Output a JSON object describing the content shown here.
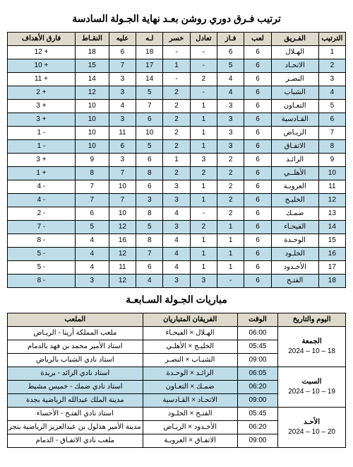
{
  "standings": {
    "title": "ترتيب فـرق دوري روشن بعـد نهاية الجـولة السادسة",
    "headers": [
      "الترتيب",
      "الفـريق",
      "لعب",
      "فـاز",
      "تعادل",
      "خسر",
      "لـه",
      "عليه",
      "النقـاط",
      "فارق الأهداف"
    ],
    "rows": [
      {
        "rank": "1",
        "team": "الهـلال",
        "played": "6",
        "won": "6",
        "drawn": "-",
        "lost": "-",
        "for": "18",
        "against": "6",
        "points": "18",
        "gd": "12 +"
      },
      {
        "rank": "2",
        "team": "الاتحـاد",
        "played": "6",
        "won": "5",
        "drawn": "-",
        "lost": "1",
        "for": "17",
        "against": "7",
        "points": "15",
        "gd": "10 +"
      },
      {
        "rank": "3",
        "team": "النصـر",
        "played": "6",
        "won": "4",
        "drawn": "2",
        "lost": "-",
        "for": "14",
        "against": "3",
        "points": "14",
        "gd": "11 +"
      },
      {
        "rank": "4",
        "team": "الشباب",
        "played": "6",
        "won": "4",
        "drawn": "-",
        "lost": "2",
        "for": "5",
        "against": "3",
        "points": "12",
        "gd": "2 +"
      },
      {
        "rank": "5",
        "team": "التعـاون",
        "played": "6",
        "won": "3",
        "drawn": "1",
        "lost": "2",
        "for": "7",
        "against": "4",
        "points": "10",
        "gd": "3 +"
      },
      {
        "rank": "6",
        "team": "القـادسية",
        "played": "6",
        "won": "3",
        "drawn": "1",
        "lost": "2",
        "for": "6",
        "against": "3",
        "points": "10",
        "gd": "3 +"
      },
      {
        "rank": "7",
        "team": "الريـاض",
        "played": "6",
        "won": "3",
        "drawn": "1",
        "lost": "2",
        "for": "10",
        "against": "11",
        "points": "10",
        "gd": "1 -"
      },
      {
        "rank": "8",
        "team": "الاتفـاق",
        "played": "6",
        "won": "3",
        "drawn": "1",
        "lost": "2",
        "for": "5",
        "against": "6",
        "points": "10",
        "gd": "1 -"
      },
      {
        "rank": "9",
        "team": "الرائـد",
        "played": "6",
        "won": "2",
        "drawn": "3",
        "lost": "1",
        "for": "6",
        "against": "3",
        "points": "9",
        "gd": "3 +"
      },
      {
        "rank": "10",
        "team": "الأهلــي",
        "played": "6",
        "won": "2",
        "drawn": "2",
        "lost": "2",
        "for": "8",
        "against": "7",
        "points": "8",
        "gd": "1 +"
      },
      {
        "rank": "11",
        "team": "العروبـة",
        "played": "6",
        "won": "2",
        "drawn": "1",
        "lost": "3",
        "for": "6",
        "against": "10",
        "points": "7",
        "gd": "4 -"
      },
      {
        "rank": "12",
        "team": "الخليـج",
        "played": "6",
        "won": "2",
        "drawn": "1",
        "lost": "3",
        "for": "3",
        "against": "7",
        "points": "7",
        "gd": "4 -"
      },
      {
        "rank": "13",
        "team": "ضمـك",
        "played": "6",
        "won": "2",
        "drawn": "-",
        "lost": "4",
        "for": "8",
        "against": "10",
        "points": "6",
        "gd": "2 -"
      },
      {
        "rank": "14",
        "team": "الفيحـاء",
        "played": "6",
        "won": "1",
        "drawn": "2",
        "lost": "3",
        "for": "5",
        "against": "12",
        "points": "5",
        "gd": "7 -"
      },
      {
        "rank": "15",
        "team": "الوحـدة",
        "played": "6",
        "won": "1",
        "drawn": "1",
        "lost": "4",
        "for": "8",
        "against": "16",
        "points": "4",
        "gd": "8 -"
      },
      {
        "rank": "16",
        "team": "الخلـود",
        "played": "6",
        "won": "1",
        "drawn": "1",
        "lost": "4",
        "for": "7",
        "against": "12",
        "points": "4",
        "gd": "5 -"
      },
      {
        "rank": "17",
        "team": "الأخـدود",
        "played": "6",
        "won": "1",
        "drawn": "1",
        "lost": "4",
        "for": "6",
        "against": "11",
        "points": "4",
        "gd": "5 -"
      },
      {
        "rank": "18",
        "team": "الفتـح",
        "played": "6",
        "won": "-",
        "drawn": "3",
        "lost": "3",
        "for": "4",
        "against": "12",
        "points": "3",
        "gd": "8 -"
      }
    ]
  },
  "fixtures": {
    "title": "مباريات الجـولة السـابعـة",
    "headers": [
      "اليوم والتاريخ",
      "الوقت",
      "الفريقان المتباريان",
      "الملعب"
    ],
    "days": [
      {
        "day": "الجمعة",
        "date": "18 – 10 – 2024",
        "matches": [
          {
            "time": "06:00",
            "teams": "الهـلال × الفيحـاء",
            "venue": "ملعب المملكة أرينا - الريـاض"
          },
          {
            "time": "05:45",
            "teams": "الخليـج × الأهلـي",
            "venue": "استاد الأمير محمد بن فهد بالدمام"
          },
          {
            "time": "09:00",
            "teams": "الشبـاب × النصـر",
            "venue": "استاد نادي الشباب بالرياض"
          }
        ]
      },
      {
        "day": "السبت",
        "date": "19 – 10 – 2024",
        "matches": [
          {
            "time": "06:05",
            "teams": "الرائـد × الوحـدة",
            "venue": "استاد نادي الرائد - بريدة"
          },
          {
            "time": "06:20",
            "teams": "ضمـك × التعـاون",
            "venue": "استاد نادي ضمك - خميس مشيط"
          },
          {
            "time": "09:00",
            "teams": "الاتحـاد × القـادسية",
            "venue": "مدينة الملك عبدالله الرياضية بجدة"
          }
        ]
      },
      {
        "day": "الأحـد",
        "date": "20 – 10 – 2024",
        "matches": [
          {
            "time": "05:45",
            "teams": "الفتـح × الخلـود",
            "venue": "استاد نادي الفتـح - الأحساء"
          },
          {
            "time": "06:20",
            "teams": "الأخـدود × الريـاض",
            "venue": "مدينة الأمير هذلول بن عبدالعزيز الرياضية بنجران"
          },
          {
            "time": "09:00",
            "teams": "الاتفـاق × العروبـة",
            "venue": "ملعب نادي الاتفـاق - الدمام"
          }
        ]
      }
    ]
  },
  "colors": {
    "header_bg": "#dedacb",
    "alt_bg": "#bedde8"
  }
}
